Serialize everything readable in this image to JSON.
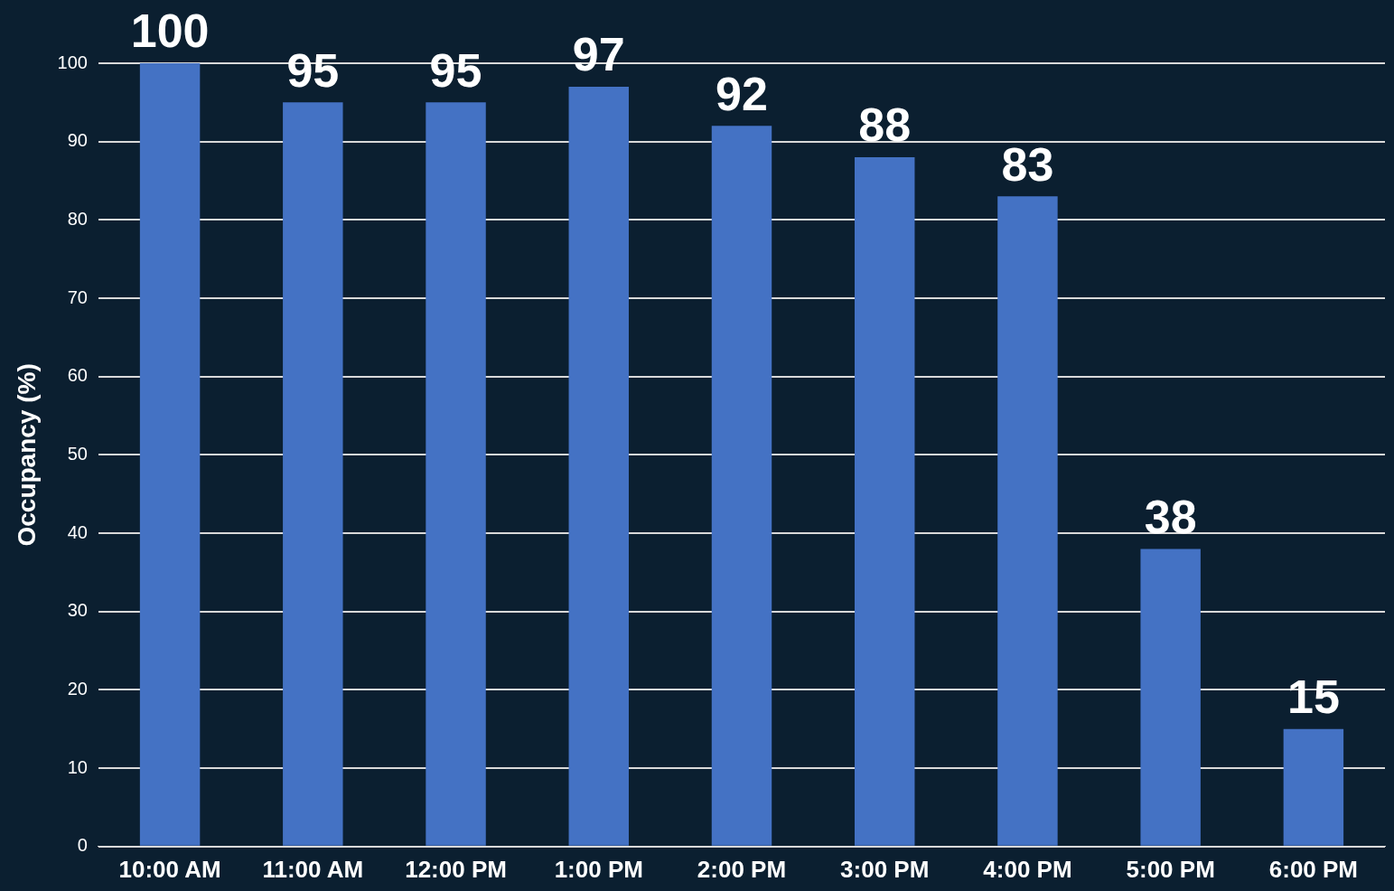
{
  "chart_data": {
    "type": "bar",
    "ylabel": "Occupancy (%)",
    "categories": [
      "10:00 AM",
      "11:00 AM",
      "12:00 PM",
      "1:00 PM",
      "2:00 PM",
      "3:00 PM",
      "4:00 PM",
      "5:00 PM",
      "6:00 PM"
    ],
    "values": [
      100,
      95,
      95,
      97,
      92,
      88,
      83,
      38,
      15
    ],
    "color": "#4472c4",
    "ylim": [
      0,
      100
    ],
    "yticks": [
      0,
      10,
      20,
      30,
      40,
      50,
      60,
      70,
      80,
      90,
      100
    ],
    "grid": "y",
    "data_labels": true,
    "legend": false
  }
}
